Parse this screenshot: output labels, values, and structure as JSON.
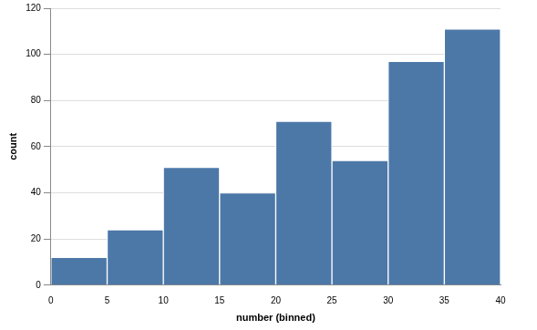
{
  "chart_data": {
    "type": "histogram",
    "bins": [
      0,
      5,
      10,
      15,
      20,
      25,
      30,
      35,
      40
    ],
    "values": [
      12,
      24,
      51,
      40,
      71,
      54,
      97,
      111
    ],
    "color": "#4c78a8",
    "x_label": "number (binned)",
    "y_label": "count",
    "xlim": [
      0,
      40
    ],
    "xticks": [
      0,
      5,
      10,
      15,
      20,
      25,
      30,
      35,
      40
    ],
    "ylim": [
      0,
      120
    ],
    "yticks": [
      0,
      20,
      40,
      60,
      80,
      100,
      120
    ],
    "grid": true
  }
}
